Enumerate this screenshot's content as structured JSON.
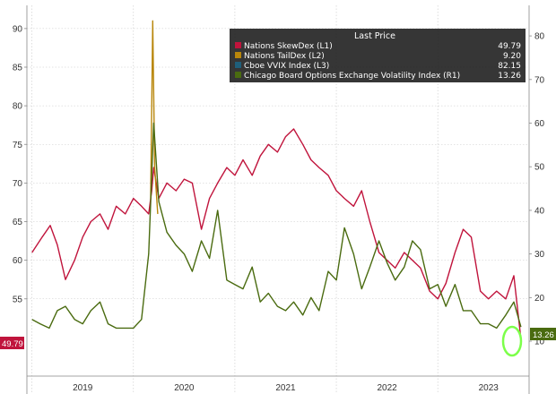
{
  "chart_data": {
    "type": "line",
    "title": "",
    "xlabel": "",
    "ylabel": "",
    "x_tick_labels": [
      "2019",
      "2020",
      "2021",
      "2022",
      "2023"
    ],
    "x_range": [
      2018.95,
      2023.9
    ],
    "left_axis": {
      "ticks": [
        55,
        60,
        65,
        70,
        75,
        80,
        85,
        90
      ],
      "range": [
        45,
        93
      ]
    },
    "right_axis": {
      "ticks": [
        10,
        20,
        30,
        40,
        50,
        60,
        70,
        80
      ],
      "range": [
        2,
        87
      ]
    },
    "grid": true,
    "legend": {
      "title": "Last Price",
      "placement": "top-right",
      "entries": [
        {
          "label": "Nations SkewDex  (L1)",
          "value": "49.79",
          "color": "#c0143c"
        },
        {
          "label": "Nations TailDex  (L2)",
          "value": "9.20",
          "color": "#b8860b"
        },
        {
          "label": "Cboe VVIX Index  (L3)",
          "value": "82.15",
          "color": "#1f5f7a"
        },
        {
          "label": "Chicago Board Options Exchange Volatility Index  (R1)",
          "value": "13.26",
          "color": "#4a6b10"
        }
      ]
    },
    "last_value_badges": {
      "left": "49.79",
      "right": "13.26"
    },
    "series": [
      {
        "name": "Nations SkewDex  (L1)",
        "axis": "left",
        "color": "#c0143c",
        "x": [
          2019.0,
          2019.1,
          2019.18,
          2019.25,
          2019.33,
          2019.42,
          2019.5,
          2019.58,
          2019.67,
          2019.75,
          2019.83,
          2019.92,
          2020.0,
          2020.08,
          2020.15,
          2020.18,
          2020.2,
          2020.25,
          2020.33,
          2020.42,
          2020.5,
          2020.58,
          2020.67,
          2020.75,
          2020.83,
          2020.92,
          2021.0,
          2021.08,
          2021.17,
          2021.25,
          2021.33,
          2021.42,
          2021.5,
          2021.58,
          2021.67,
          2021.75,
          2021.83,
          2021.92,
          2022.0,
          2022.08,
          2022.17,
          2022.25,
          2022.33,
          2022.42,
          2022.5,
          2022.58,
          2022.67,
          2022.75,
          2022.83,
          2022.92,
          2023.0,
          2023.08,
          2023.17,
          2023.25,
          2023.33,
          2023.42,
          2023.5,
          2023.58,
          2023.67,
          2023.75,
          2023.82
        ],
        "values": [
          61,
          63,
          64.5,
          62,
          57.5,
          60,
          63,
          65,
          66,
          64,
          67,
          66,
          68,
          67,
          66,
          69,
          72,
          68,
          70,
          69,
          70.5,
          70,
          64,
          68,
          70,
          72,
          71,
          73,
          71,
          73.5,
          75,
          74,
          76,
          77,
          75,
          73,
          72,
          71,
          69,
          68,
          67,
          69,
          65,
          61,
          60,
          59,
          61,
          60,
          59,
          56,
          55,
          57,
          61,
          64,
          63,
          56,
          55,
          56,
          55,
          58,
          49.79
        ]
      },
      {
        "name": "Nations TailDex  (L2)",
        "axis": "left",
        "color": "#b8860b",
        "x": [
          2020.17,
          2020.19,
          2020.21,
          2020.24
        ],
        "values": [
          68,
          91,
          72,
          66
        ]
      },
      {
        "name": "Chicago Board Options Exchange Volatility Index  (R1)",
        "axis": "right",
        "color": "#4a6b10",
        "x": [
          2019.0,
          2019.08,
          2019.17,
          2019.25,
          2019.33,
          2019.42,
          2019.5,
          2019.58,
          2019.67,
          2019.75,
          2019.83,
          2019.92,
          2020.0,
          2020.08,
          2020.15,
          2020.2,
          2020.25,
          2020.33,
          2020.42,
          2020.5,
          2020.58,
          2020.67,
          2020.75,
          2020.83,
          2020.92,
          2021.0,
          2021.08,
          2021.17,
          2021.25,
          2021.33,
          2021.42,
          2021.5,
          2021.58,
          2021.67,
          2021.75,
          2021.83,
          2021.92,
          2022.0,
          2022.08,
          2022.17,
          2022.25,
          2022.33,
          2022.42,
          2022.5,
          2022.58,
          2022.67,
          2022.75,
          2022.83,
          2022.92,
          2023.0,
          2023.08,
          2023.17,
          2023.25,
          2023.33,
          2023.42,
          2023.5,
          2023.58,
          2023.67,
          2023.75,
          2023.82
        ],
        "values": [
          15,
          14,
          13,
          17,
          18,
          15,
          14,
          17,
          19,
          14,
          13,
          13,
          13,
          15,
          30,
          60,
          42,
          35,
          32,
          30,
          26,
          33,
          29,
          40,
          24,
          23,
          22,
          27,
          19,
          21,
          18,
          17,
          19,
          16,
          20,
          17,
          26,
          24,
          36,
          30,
          22,
          27,
          33,
          28,
          24,
          27,
          33,
          31,
          22,
          23,
          18,
          23,
          17,
          17,
          14,
          14,
          13,
          16,
          19,
          13.26
        ]
      }
    ]
  }
}
